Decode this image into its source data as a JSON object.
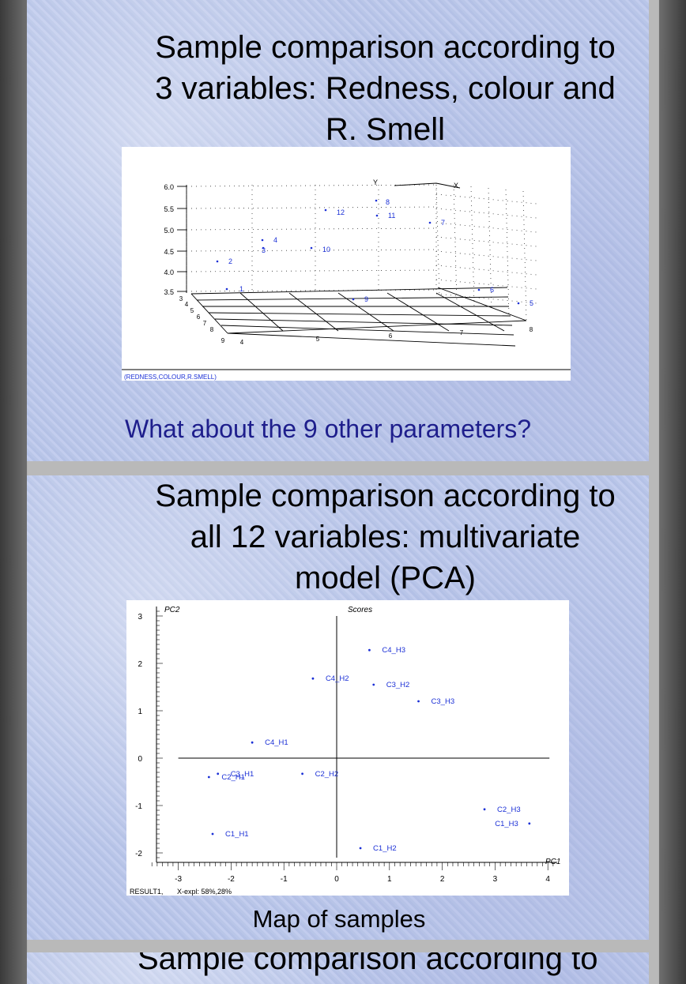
{
  "slide1": {
    "title_lines": [
      "Sample comparison according to",
      "3 variables: Redness, colour and",
      "R. Smell"
    ],
    "question": "What about the 9 other parameters?",
    "plot3d": {
      "footer_label": "(REDNESS,COLOUR,R.SMELL)",
      "axis_x": "X",
      "axis_y": "Y",
      "z_ticks": [
        "6.0",
        "5.5",
        "5.0",
        "4.5",
        "4.0",
        "3.5"
      ],
      "depth_ticks": [
        "3",
        "4",
        "5",
        "6",
        "7",
        "8",
        "9"
      ],
      "x_ticks": [
        "4",
        "5",
        "6",
        "7",
        "8"
      ],
      "points": [
        "1",
        "2",
        "3",
        "4",
        "5",
        "6",
        "7",
        "8",
        "9",
        "10",
        "11",
        "12"
      ]
    }
  },
  "slide2": {
    "title_lines": [
      "Sample comparison according to",
      "all 12 variables: multivariate",
      "model (PCA)"
    ],
    "caption": "Map of samples",
    "chart_data": {
      "type": "scatter",
      "title": "Scores",
      "xlabel": "PC1",
      "ylabel": "PC2",
      "xlim": [
        -3.5,
        4.2
      ],
      "ylim": [
        -2.2,
        3.1
      ],
      "x_ticks": [
        "-3",
        "-2",
        "-1",
        "0",
        "1",
        "2",
        "3",
        "4"
      ],
      "y_ticks": [
        "3",
        "2",
        "1",
        "0",
        "-1",
        "-2"
      ],
      "footer_label": "RESULT1,",
      "footer_explained": "X-expl: 58%,28%",
      "points": [
        {
          "label": "C4_H3",
          "x": 0.62,
          "y": 2.28
        },
        {
          "label": "C4_H2",
          "x": -0.45,
          "y": 1.68
        },
        {
          "label": "C3_H2",
          "x": 0.7,
          "y": 1.55
        },
        {
          "label": "C3_H3",
          "x": 1.55,
          "y": 1.2
        },
        {
          "label": "C4_H1",
          "x": -1.6,
          "y": 0.33
        },
        {
          "label": "C3_H1",
          "x": -2.25,
          "y": -0.33
        },
        {
          "label": "C2_H1",
          "x": -2.42,
          "y": -0.4
        },
        {
          "label": "C2_H2",
          "x": -0.65,
          "y": -0.33
        },
        {
          "label": "C2_H3",
          "x": 2.8,
          "y": -1.08
        },
        {
          "label": "C1_H3",
          "x": 3.65,
          "y": -1.38
        },
        {
          "label": "C1_H1",
          "x": -2.35,
          "y": -1.6
        },
        {
          "label": "C1_H2",
          "x": 0.45,
          "y": -1.9
        }
      ]
    }
  },
  "slide3": {
    "title_fragment": "Sample comparison according to"
  },
  "colors": {
    "point": "#1a2fd6",
    "question": "#1e1e8c"
  }
}
